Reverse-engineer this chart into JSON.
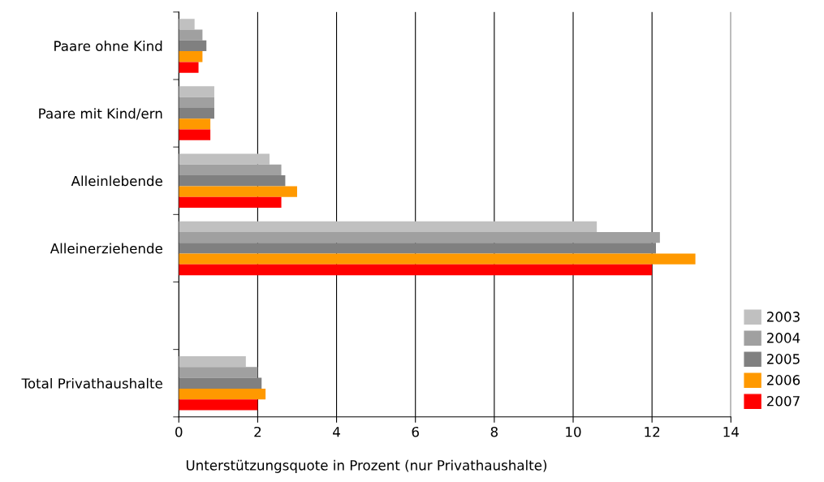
{
  "chart_data": {
    "type": "bar",
    "orientation": "horizontal",
    "xlabel": "Unterstützungsquote in Prozent (nur Privathaushalte)",
    "categories": [
      "Paare ohne Kind",
      "Paare mit Kind/ern",
      "Alleinlebende",
      "Alleinerziehende",
      null,
      "Total Privathaushalte"
    ],
    "series": [
      {
        "name": "2003",
        "color": "#c0c0c0",
        "values": [
          0.4,
          0.9,
          2.3,
          10.6,
          null,
          1.7
        ]
      },
      {
        "name": "2004",
        "color": "#a0a0a0",
        "values": [
          0.6,
          0.9,
          2.6,
          12.2,
          null,
          2.0
        ]
      },
      {
        "name": "2005",
        "color": "#808080",
        "values": [
          0.7,
          0.9,
          2.7,
          12.1,
          null,
          2.1
        ]
      },
      {
        "name": "2006",
        "color": "#ff9900",
        "values": [
          0.6,
          0.8,
          3.0,
          13.1,
          null,
          2.2
        ]
      },
      {
        "name": "2007",
        "color": "#ff0000",
        "values": [
          0.5,
          0.8,
          2.6,
          12.0,
          null,
          2.0
        ]
      }
    ],
    "xlim": [
      0,
      14
    ],
    "xticks": [
      0,
      2,
      4,
      6,
      8,
      10,
      12,
      14
    ],
    "grid": "x",
    "legend": "right"
  }
}
